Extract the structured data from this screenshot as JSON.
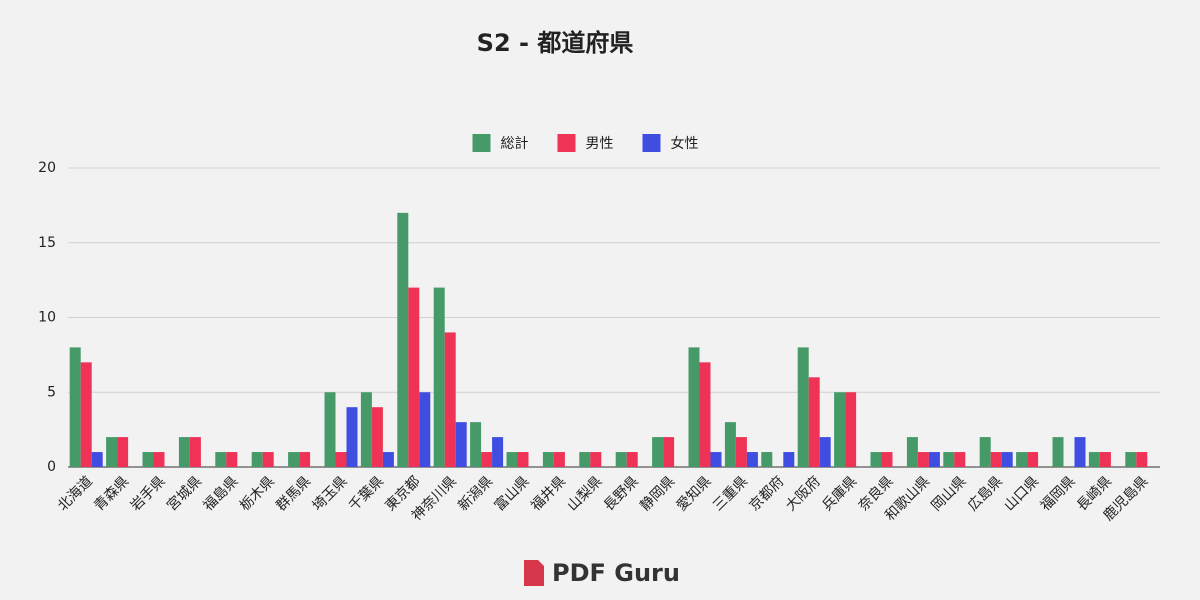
{
  "chart_data": {
    "type": "bar",
    "title": "S2 - 都道府県",
    "categories": [
      "北海道",
      "青森県",
      "岩手県",
      "宮城県",
      "福島県",
      "栃木県",
      "群馬県",
      "埼玉県",
      "千葉県",
      "東京都",
      "神奈川県",
      "新潟県",
      "富山県",
      "福井県",
      "山梨県",
      "長野県",
      "静岡県",
      "愛知県",
      "三重県",
      "京都府",
      "大阪府",
      "兵庫県",
      "奈良県",
      "和歌山県",
      "岡山県",
      "広島県",
      "山口県",
      "福岡県",
      "長崎県",
      "鹿児島県"
    ],
    "series": [
      {
        "name": "総計",
        "color": "#459a68",
        "values": [
          8,
          2,
          1,
          2,
          1,
          1,
          1,
          5,
          5,
          17,
          12,
          3,
          1,
          1,
          1,
          1,
          2,
          8,
          3,
          1,
          8,
          5,
          1,
          2,
          1,
          2,
          1,
          2,
          1,
          1
        ]
      },
      {
        "name": "男性",
        "color": "#ef3356",
        "values": [
          7,
          2,
          1,
          2,
          1,
          1,
          1,
          1,
          4,
          12,
          9,
          1,
          1,
          1,
          1,
          1,
          2,
          7,
          2,
          0,
          6,
          5,
          1,
          1,
          1,
          1,
          1,
          0,
          1,
          1
        ]
      },
      {
        "name": "女性",
        "color": "#3f4ee0",
        "values": [
          1,
          0,
          0,
          0,
          0,
          0,
          0,
          4,
          1,
          5,
          3,
          2,
          0,
          0,
          0,
          0,
          0,
          1,
          1,
          1,
          2,
          0,
          0,
          1,
          0,
          1,
          0,
          2,
          0,
          0
        ]
      }
    ],
    "ylim": [
      0,
      20
    ],
    "yticks": [
      0,
      5,
      10,
      15,
      20
    ],
    "grid": true,
    "legend": "top",
    "footer_logo": "PDF Guru"
  }
}
